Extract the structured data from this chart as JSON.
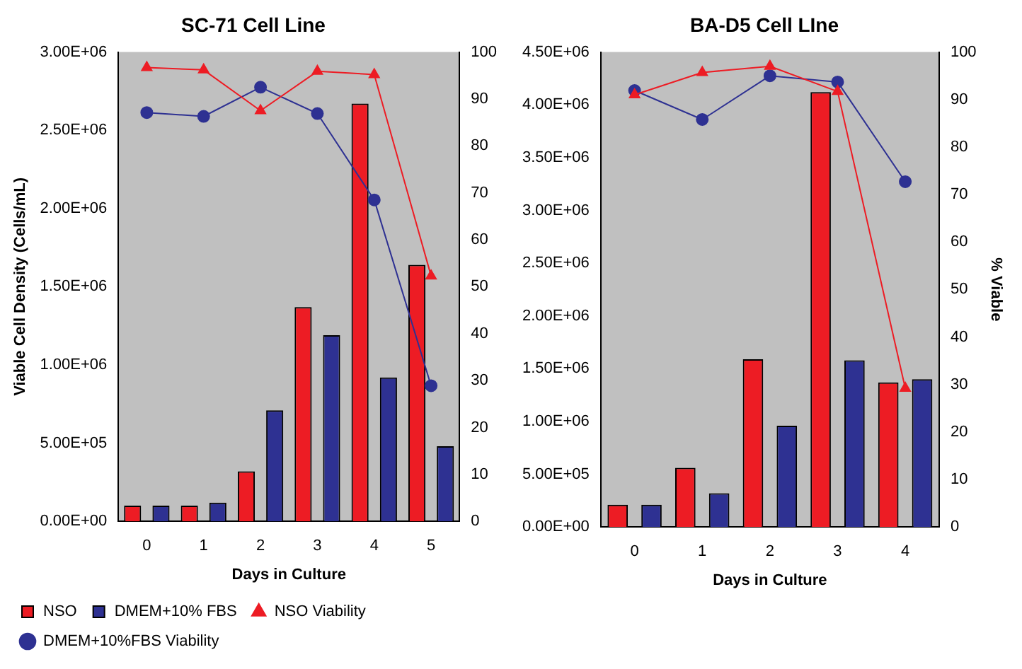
{
  "chart_data": [
    {
      "type": "bar",
      "title": "SC-71 Cell Line",
      "xlabel": "Days in Culture",
      "ylabel": "Viable Cell Density (Cells/mL)",
      "categories": [
        "0",
        "1",
        "2",
        "3",
        "4",
        "5"
      ],
      "series": [
        {
          "name": "NSO",
          "color": "#ed1c24",
          "values": [
            100000,
            100000,
            320000,
            1370000,
            2670000,
            1640000
          ]
        },
        {
          "name": "DMEM+10% FBS",
          "color": "#2e3192",
          "values": [
            100000,
            120000,
            710000,
            1190000,
            920000,
            480000
          ]
        },
        {
          "name": "NSO Viability",
          "type": "line",
          "axis": "y2",
          "marker": "triangle",
          "color": "#ed1c24",
          "values": [
            96.7,
            96.2,
            87.5,
            95.9,
            95.2,
            52.3
          ]
        },
        {
          "name": "DMEM+10%FBS Viability",
          "type": "line",
          "axis": "y2",
          "marker": "circle",
          "color": "#2e3192",
          "values": [
            87.1,
            86.3,
            92.5,
            86.9,
            68.5,
            28.9
          ]
        }
      ],
      "ylim": [
        0,
        3000000
      ],
      "yticks": [
        {
          "value": 0,
          "label": "0.00E+00"
        },
        {
          "value": 500000,
          "label": "5.00E+05"
        },
        {
          "value": 1000000,
          "label": "1.00E+06"
        },
        {
          "value": 1500000,
          "label": "1.50E+06"
        },
        {
          "value": 2000000,
          "label": "2.00E+06"
        },
        {
          "value": 2500000,
          "label": "2.50E+06"
        },
        {
          "value": 3000000,
          "label": "3.00E+06"
        }
      ],
      "y2lim": [
        0,
        100
      ],
      "y2ticks": [
        0,
        10,
        20,
        30,
        40,
        50,
        60,
        70,
        80,
        90,
        100
      ],
      "grid": false,
      "legend": "bottom"
    },
    {
      "type": "bar",
      "title": "BA-D5 Cell LIne",
      "xlabel": "Days in Culture",
      "y2label": "% Viable",
      "categories": [
        "0",
        "1",
        "2",
        "3",
        "4"
      ],
      "series": [
        {
          "color": "#ed1c24",
          "values": [
            210000,
            560000,
            1590000,
            4120000,
            1370000
          ]
        },
        {
          "color": "#2e3192",
          "values": [
            210000,
            320000,
            960000,
            1580000,
            1400000
          ]
        },
        {
          "type": "line",
          "axis": "y2",
          "marker": "triangle",
          "color": "#ed1c24",
          "values": [
            91.0,
            95.7,
            97.0,
            91.7,
            29.2
          ]
        },
        {
          "type": "line",
          "axis": "y2",
          "marker": "circle",
          "color": "#2e3192",
          "values": [
            91.9,
            85.8,
            95.0,
            93.7,
            72.7
          ]
        }
      ],
      "ylim": [
        0,
        4500000
      ],
      "yticks": [
        {
          "value": 0,
          "label": "0.00E+00"
        },
        {
          "value": 500000,
          "label": "5.00E+05"
        },
        {
          "value": 1000000,
          "label": "1.00E+06"
        },
        {
          "value": 1500000,
          "label": "1.50E+06"
        },
        {
          "value": 2000000,
          "label": "2.00E+06"
        },
        {
          "value": 2500000,
          "label": "2.50E+06"
        },
        {
          "value": 3000000,
          "label": "3.00E+06"
        },
        {
          "value": 3500000,
          "label": "3.50E+06"
        },
        {
          "value": 4000000,
          "label": "4.00E+06"
        },
        {
          "value": 4500000,
          "label": "4.50E+06"
        }
      ],
      "y2lim": [
        0,
        100
      ],
      "y2ticks": [
        0,
        10,
        20,
        30,
        40,
        50,
        60,
        70,
        80,
        90,
        100
      ],
      "grid": false,
      "legend": false
    }
  ]
}
